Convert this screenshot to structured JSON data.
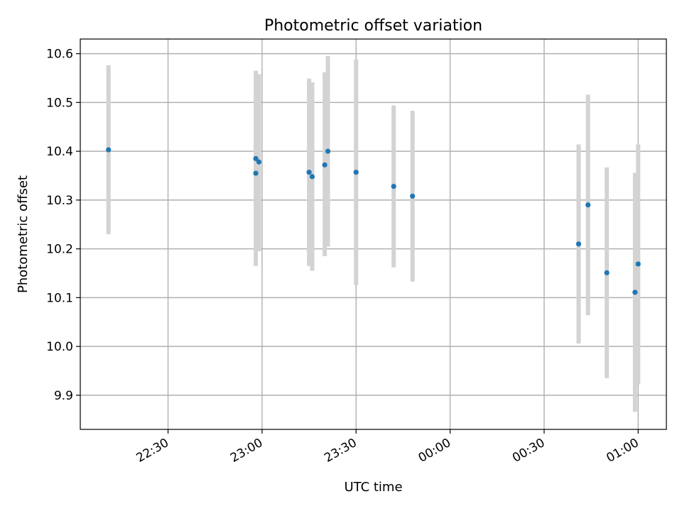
{
  "chart_data": {
    "type": "scatter",
    "title": "Photometric offset variation",
    "xlabel": "UTC time",
    "ylabel": "Photometric offset",
    "x_axis_type": "time",
    "xlim": [
      "22:02",
      "01:09"
    ],
    "ylim": [
      9.83,
      10.63
    ],
    "x_ticks": [
      {
        "value": "22:30",
        "label": "22:30"
      },
      {
        "value": "23:00",
        "label": "23:00"
      },
      {
        "value": "23:30",
        "label": "23:30"
      },
      {
        "value": "00:00",
        "label": "00:00"
      },
      {
        "value": "00:30",
        "label": "00:30"
      },
      {
        "value": "01:00",
        "label": "01:00"
      }
    ],
    "y_ticks": [
      9.9,
      10.0,
      10.1,
      10.2,
      10.3,
      10.4,
      10.5,
      10.6
    ],
    "y_tick_labels": [
      "9.9",
      "10.0",
      "10.1",
      "10.2",
      "10.3",
      "10.4",
      "10.5",
      "10.6"
    ],
    "grid": true,
    "x_tick_rotation": "30 degrees",
    "colors": {
      "marker": "#1f77b4",
      "errorbar": "#d3d3d3",
      "grid": "#b0b0b0",
      "axes": "#000000"
    },
    "points": [
      {
        "x": "22:11",
        "y": 10.403,
        "ylow": 10.23,
        "yhigh": 10.576
      },
      {
        "x": "22:58",
        "y": 10.355,
        "ylow": 10.165,
        "yhigh": 10.545
      },
      {
        "x": "22:58",
        "y": 10.385,
        "ylow": 10.205,
        "yhigh": 10.565
      },
      {
        "x": "22:59",
        "y": 10.378,
        "ylow": 10.195,
        "yhigh": 10.558
      },
      {
        "x": "23:15",
        "y": 10.357,
        "ylow": 10.165,
        "yhigh": 10.549
      },
      {
        "x": "23:16",
        "y": 10.348,
        "ylow": 10.155,
        "yhigh": 10.541
      },
      {
        "x": "23:20",
        "y": 10.372,
        "ylow": 10.185,
        "yhigh": 10.562
      },
      {
        "x": "23:21",
        "y": 10.4,
        "ylow": 10.205,
        "yhigh": 10.595
      },
      {
        "x": "23:30",
        "y": 10.357,
        "ylow": 10.126,
        "yhigh": 10.588
      },
      {
        "x": "23:42",
        "y": 10.328,
        "ylow": 10.162,
        "yhigh": 10.494
      },
      {
        "x": "23:48",
        "y": 10.308,
        "ylow": 10.133,
        "yhigh": 10.483
      },
      {
        "x": "00:41",
        "y": 10.21,
        "ylow": 10.006,
        "yhigh": 10.414
      },
      {
        "x": "00:44",
        "y": 10.29,
        "ylow": 10.064,
        "yhigh": 10.516
      },
      {
        "x": "00:50",
        "y": 10.151,
        "ylow": 9.935,
        "yhigh": 10.367
      },
      {
        "x": "00:59",
        "y": 10.111,
        "ylow": 9.866,
        "yhigh": 10.356
      },
      {
        "x": "01:00",
        "y": 10.169,
        "ylow": 9.922,
        "yhigh": 10.414
      }
    ]
  }
}
